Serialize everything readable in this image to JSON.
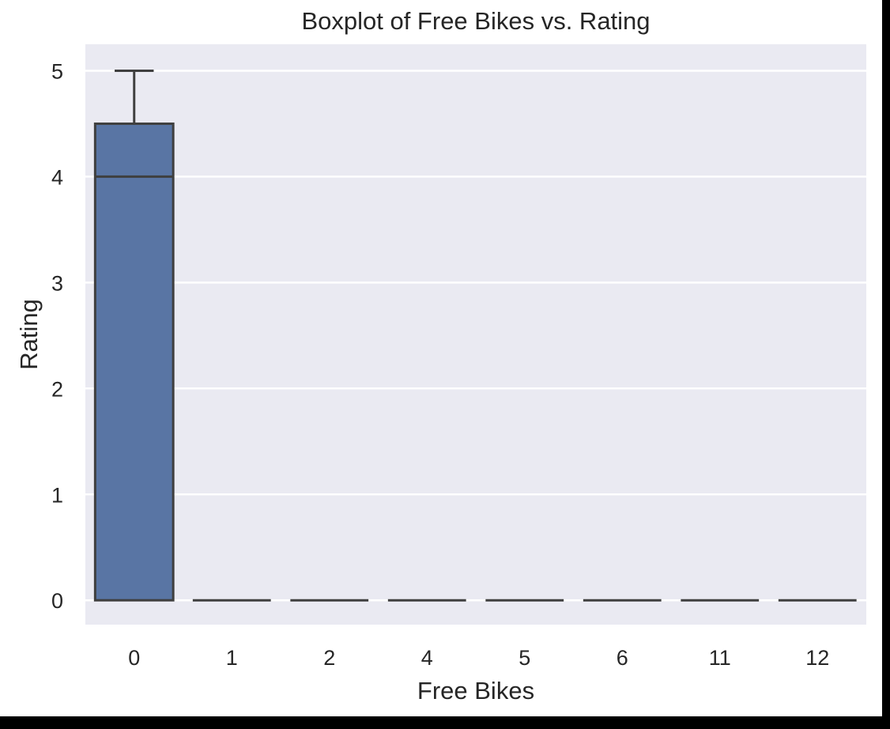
{
  "chart_data": {
    "type": "box",
    "title": "Boxplot of Free Bikes vs. Rating",
    "xlabel": "Free Bikes",
    "ylabel": "Rating",
    "categories": [
      "0",
      "1",
      "2",
      "4",
      "5",
      "6",
      "11",
      "12"
    ],
    "ylim": [
      -0.23,
      5.25
    ],
    "yticks": [
      0,
      1,
      2,
      3,
      4,
      5
    ],
    "grid": true,
    "boxes": [
      {
        "category": "0",
        "whislo": 0,
        "q1": 0,
        "med": 4,
        "q3": 4.5,
        "whishi": 5
      },
      {
        "category": "1",
        "whislo": 0,
        "q1": 0,
        "med": 0,
        "q3": 0,
        "whishi": 0
      },
      {
        "category": "2",
        "whislo": 0,
        "q1": 0,
        "med": 0,
        "q3": 0,
        "whishi": 0
      },
      {
        "category": "4",
        "whislo": 0,
        "q1": 0,
        "med": 0,
        "q3": 0,
        "whishi": 0
      },
      {
        "category": "5",
        "whislo": 0,
        "q1": 0,
        "med": 0,
        "q3": 0,
        "whishi": 0
      },
      {
        "category": "6",
        "whislo": 0,
        "q1": 0,
        "med": 0,
        "q3": 0,
        "whishi": 0
      },
      {
        "category": "11",
        "whislo": 0,
        "q1": 0,
        "med": 0,
        "q3": 0,
        "whishi": 0
      },
      {
        "category": "12",
        "whislo": 0,
        "q1": 0,
        "med": 0,
        "q3": 0,
        "whishi": 0
      }
    ],
    "colors": {
      "plot_background": "#eaeaf2",
      "grid": "#ffffff",
      "box_fill": "#5975a4",
      "box_line": "#3f3f3f",
      "text": "#262626"
    }
  }
}
